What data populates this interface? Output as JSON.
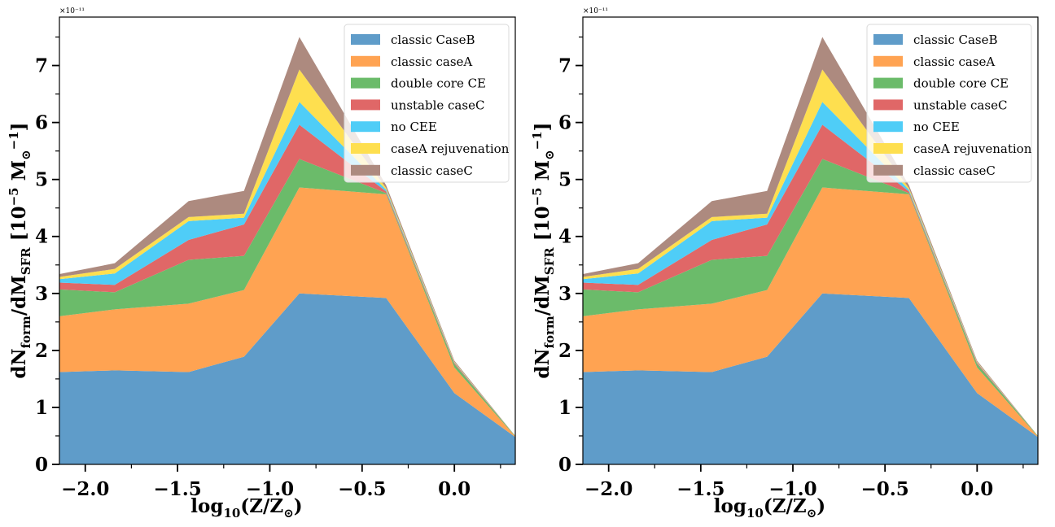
{
  "chart_data": [
    {
      "type": "area",
      "stacked": true,
      "x": [
        -2.14,
        -1.84,
        -1.44,
        -1.14,
        -0.84,
        -0.37,
        0.0,
        0.33
      ],
      "xlabel_parts": {
        "base": "log",
        "sub": "10",
        "rest": "(Z/Z",
        "sun": "⊙",
        "end": ")"
      },
      "ylabel_parts": {
        "a": "dN",
        "a_sub": "form",
        "b": "/dM",
        "b_sub": "SFR",
        "c": "[10",
        "c_sup": "−5",
        "d": " M",
        "d_sub": "⊙",
        "d_sup": "−1",
        "e": "]"
      },
      "offset_text": "×10⁻¹¹",
      "xlim": [
        -2.14,
        0.33
      ],
      "ylim": [
        0,
        7.85
      ],
      "xticks": [
        -2.0,
        -1.5,
        -1.0,
        -0.5,
        0.0
      ],
      "xtick_labels": [
        "−2.0",
        "−1.5",
        "−1.0",
        "−0.5",
        "0.0"
      ],
      "yticks": [
        0,
        1,
        2,
        3,
        4,
        5,
        6,
        7
      ],
      "ytick_labels": [
        "0",
        "1",
        "2",
        "3",
        "4",
        "5",
        "6",
        "7"
      ],
      "legend_position": "top-right",
      "grid": false,
      "series": [
        {
          "name": "classic CaseB",
          "color": "#5f9cc9",
          "values": [
            1.62,
            1.65,
            1.62,
            1.89,
            3.0,
            2.92,
            1.25,
            0.48
          ]
        },
        {
          "name": "classic caseA",
          "color": "#ffa352",
          "values": [
            0.98,
            1.07,
            1.2,
            1.17,
            1.86,
            1.82,
            0.45,
            0.01
          ]
        },
        {
          "name": "double core CE",
          "color": "#6bbb6a",
          "values": [
            0.47,
            0.3,
            0.77,
            0.6,
            0.5,
            0.02,
            0.06,
            0.01
          ]
        },
        {
          "name": "unstable caseC",
          "color": "#e06767",
          "values": [
            0.12,
            0.13,
            0.35,
            0.55,
            0.6,
            0.03,
            0.02,
            0.0
          ]
        },
        {
          "name": "no CEE",
          "color": "#4fcdf7",
          "values": [
            0.06,
            0.2,
            0.33,
            0.12,
            0.4,
            0.03,
            0.01,
            0.0
          ]
        },
        {
          "name": "caseA rejuvenation",
          "color": "#fedf4f",
          "values": [
            0.04,
            0.08,
            0.07,
            0.07,
            0.57,
            0.03,
            0.01,
            0.0
          ]
        },
        {
          "name": "classic caseC",
          "color": "#ad8a7f",
          "values": [
            0.05,
            0.1,
            0.28,
            0.4,
            0.57,
            0.05,
            0.02,
            0.0
          ]
        }
      ]
    },
    {
      "type": "area",
      "stacked": true,
      "x": [
        -2.14,
        -1.84,
        -1.44,
        -1.14,
        -0.84,
        -0.37,
        0.0,
        0.33
      ],
      "xlabel_parts": {
        "base": "log",
        "sub": "10",
        "rest": "(Z/Z",
        "sun": "⊙",
        "end": ")"
      },
      "ylabel_parts": {
        "a": "dN",
        "a_sub": "form",
        "b": "/dM",
        "b_sub": "SFR",
        "c": "[10",
        "c_sup": "−5",
        "d": " M",
        "d_sub": "⊙",
        "d_sup": "−1",
        "e": "]"
      },
      "offset_text": "×10⁻¹¹",
      "xlim": [
        -2.14,
        0.33
      ],
      "ylim": [
        0,
        7.85
      ],
      "xticks": [
        -2.0,
        -1.5,
        -1.0,
        -0.5,
        0.0
      ],
      "xtick_labels": [
        "−2.0",
        "−1.5",
        "−1.0",
        "−0.5",
        "0.0"
      ],
      "yticks": [
        0,
        1,
        2,
        3,
        4,
        5,
        6,
        7
      ],
      "ytick_labels": [
        "0",
        "1",
        "2",
        "3",
        "4",
        "5",
        "6",
        "7"
      ],
      "legend_position": "top-right",
      "grid": false,
      "series": [
        {
          "name": "classic CaseB",
          "color": "#5f9cc9",
          "values": [
            1.62,
            1.65,
            1.62,
            1.89,
            3.0,
            2.92,
            1.25,
            0.48
          ]
        },
        {
          "name": "classic caseA",
          "color": "#ffa352",
          "values": [
            0.98,
            1.07,
            1.2,
            1.17,
            1.86,
            1.82,
            0.45,
            0.01
          ]
        },
        {
          "name": "double core CE",
          "color": "#6bbb6a",
          "values": [
            0.47,
            0.3,
            0.77,
            0.6,
            0.5,
            0.02,
            0.06,
            0.01
          ]
        },
        {
          "name": "unstable caseC",
          "color": "#e06767",
          "values": [
            0.12,
            0.13,
            0.35,
            0.55,
            0.6,
            0.03,
            0.02,
            0.0
          ]
        },
        {
          "name": "no CEE",
          "color": "#4fcdf7",
          "values": [
            0.06,
            0.2,
            0.33,
            0.12,
            0.4,
            0.03,
            0.01,
            0.0
          ]
        },
        {
          "name": "caseA rejuvenation",
          "color": "#fedf4f",
          "values": [
            0.04,
            0.08,
            0.07,
            0.07,
            0.57,
            0.03,
            0.01,
            0.0
          ]
        },
        {
          "name": "classic caseC",
          "color": "#ad8a7f",
          "values": [
            0.05,
            0.1,
            0.28,
            0.4,
            0.57,
            0.05,
            0.02,
            0.0
          ]
        }
      ]
    }
  ]
}
